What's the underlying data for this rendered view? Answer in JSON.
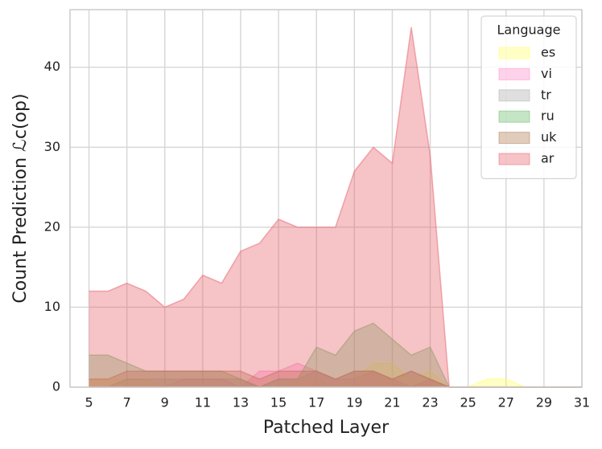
{
  "chart_data": {
    "type": "area",
    "xlabel": "Patched Layer",
    "ylabel": "Count Prediction ℒc(op)",
    "x": [
      5,
      6,
      7,
      8,
      9,
      10,
      11,
      12,
      13,
      14,
      15,
      16,
      17,
      18,
      19,
      20,
      21,
      22,
      23,
      24,
      25,
      26,
      27,
      28,
      29,
      30,
      31
    ],
    "xlim": [
      4,
      31
    ],
    "xticks": [
      5,
      7,
      9,
      11,
      13,
      15,
      17,
      19,
      21,
      23,
      25,
      27,
      29,
      31
    ],
    "ylim": [
      0,
      47.2
    ],
    "yticks": [
      0,
      10,
      20,
      30,
      40
    ],
    "grid": true,
    "legend_title": "Language",
    "legend_position": "upper right",
    "series": [
      {
        "name": "es",
        "color": "#ffff66",
        "values": [
          1,
          1,
          1,
          1,
          0,
          0,
          0,
          0,
          0,
          0,
          0,
          1,
          1,
          0,
          1,
          3,
          3,
          1,
          2,
          0,
          0,
          1,
          1,
          0,
          0,
          0,
          0
        ]
      },
      {
        "name": "vi",
        "color": "#ff88cc",
        "values": [
          0,
          0,
          0,
          0,
          0,
          1,
          1,
          1,
          0,
          2,
          2,
          3,
          2,
          1,
          1,
          2,
          1,
          0,
          1,
          0,
          0,
          0,
          0,
          0,
          0,
          0,
          0
        ]
      },
      {
        "name": "tr",
        "color": "#aaaaaa",
        "values": [
          0,
          0,
          1,
          1,
          1,
          1,
          1,
          1,
          1,
          0,
          1,
          1,
          2,
          1,
          2,
          2,
          1,
          2,
          1,
          0,
          0,
          0,
          0,
          0,
          0,
          0,
          0
        ]
      },
      {
        "name": "ru",
        "color": "#66bb66",
        "values": [
          4,
          4,
          3,
          2,
          2,
          2,
          2,
          2,
          1,
          0,
          1,
          1,
          5,
          4,
          7,
          8,
          6,
          4,
          5,
          0,
          0,
          0,
          0,
          0,
          0,
          0,
          0
        ]
      },
      {
        "name": "uk",
        "color": "#b07850",
        "values": [
          1,
          1,
          2,
          2,
          2,
          2,
          2,
          2,
          2,
          1,
          2,
          2,
          2,
          1,
          2,
          2,
          1,
          2,
          1,
          0,
          0,
          0,
          0,
          0,
          0,
          0,
          0
        ]
      },
      {
        "name": "ar",
        "color": "#e8616b",
        "values": [
          12,
          12,
          13,
          12,
          10,
          11,
          14,
          13,
          17,
          18,
          21,
          20,
          20,
          20,
          27,
          30,
          28,
          45,
          29,
          0,
          0,
          0,
          0,
          0,
          0,
          0,
          0
        ]
      }
    ]
  }
}
